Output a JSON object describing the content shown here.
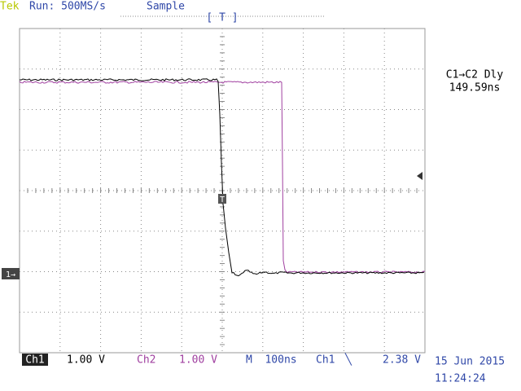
{
  "header": {
    "brand": "Tek",
    "run": "Run: 500MS/s",
    "mode": "Sample",
    "trigger": "[ T ]"
  },
  "measurement": {
    "label": "C1→C2 Dly",
    "value": "149.59ns"
  },
  "marker": {
    "ch1": "1→",
    "trigger_point": "T"
  },
  "footer": {
    "ch1_label": "Ch1",
    "ch1_scale": "1.00 V",
    "ch2_label": "Ch2",
    "ch2_scale": "1.00 V",
    "timebase": "M  100ns",
    "trigger_source": "Ch1",
    "trigger_slope": "╲",
    "trigger_level": "2.38 V",
    "date": "15 Jun 2015",
    "time": "11:24:24"
  }
}
